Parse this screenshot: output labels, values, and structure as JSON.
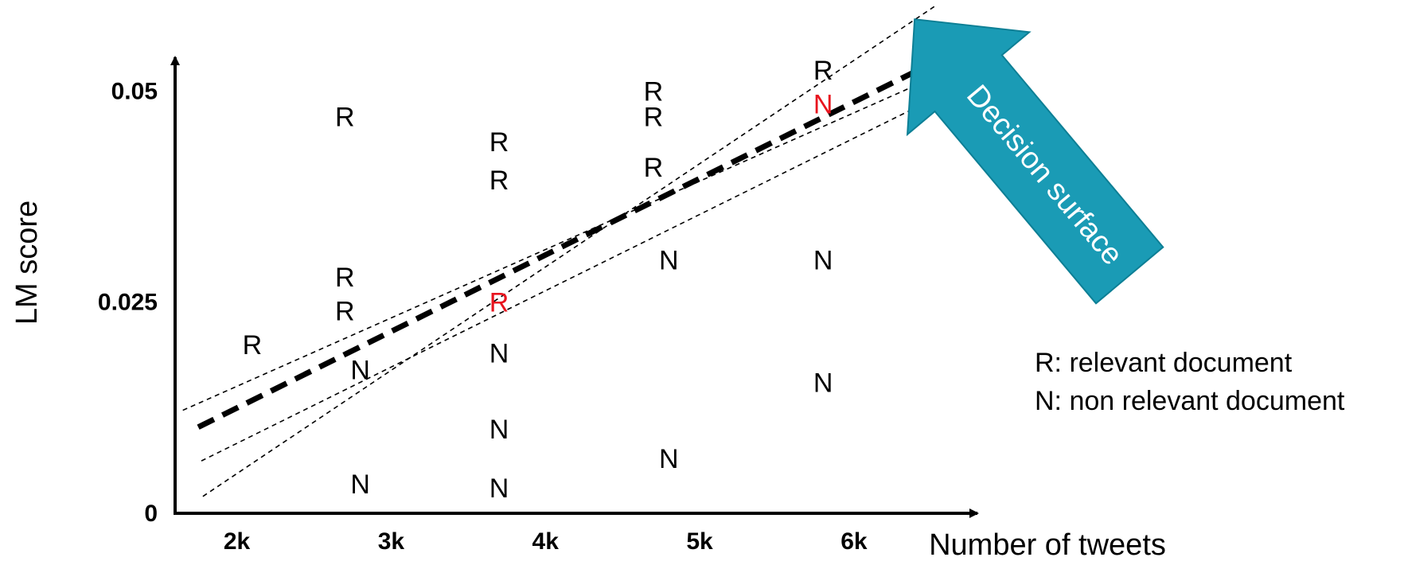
{
  "chart_data": {
    "type": "scatter",
    "xlabel": "Number of tweets",
    "ylabel": "LM score",
    "x_ticks": [
      {
        "value": 2000,
        "label": "2k"
      },
      {
        "value": 3000,
        "label": "3k"
      },
      {
        "value": 4000,
        "label": "4k"
      },
      {
        "value": 5000,
        "label": "5k"
      },
      {
        "value": 6000,
        "label": "6k"
      }
    ],
    "y_ticks": [
      {
        "value": 0,
        "label": "0"
      },
      {
        "value": 0.025,
        "label": "0.025"
      },
      {
        "value": 0.05,
        "label": "0.05"
      }
    ],
    "xlim": [
      1600,
      6800
    ],
    "ylim": [
      0,
      0.054
    ],
    "points": [
      {
        "x": 2100,
        "y": 0.02,
        "label": "R",
        "color": "#000000"
      },
      {
        "x": 2700,
        "y": 0.047,
        "label": "R",
        "color": "#000000"
      },
      {
        "x": 2700,
        "y": 0.028,
        "label": "R",
        "color": "#000000"
      },
      {
        "x": 2700,
        "y": 0.024,
        "label": "R",
        "color": "#000000"
      },
      {
        "x": 2800,
        "y": 0.017,
        "label": "N",
        "color": "#000000"
      },
      {
        "x": 2800,
        "y": 0.0035,
        "label": "N",
        "color": "#000000"
      },
      {
        "x": 3700,
        "y": 0.044,
        "label": "R",
        "color": "#000000"
      },
      {
        "x": 3700,
        "y": 0.0395,
        "label": "R",
        "color": "#000000"
      },
      {
        "x": 3700,
        "y": 0.025,
        "label": "R",
        "color": "#e8141e"
      },
      {
        "x": 3700,
        "y": 0.019,
        "label": "N",
        "color": "#000000"
      },
      {
        "x": 3700,
        "y": 0.01,
        "label": "N",
        "color": "#000000"
      },
      {
        "x": 3700,
        "y": 0.003,
        "label": "N",
        "color": "#000000"
      },
      {
        "x": 4700,
        "y": 0.05,
        "label": "R",
        "color": "#000000"
      },
      {
        "x": 4700,
        "y": 0.047,
        "label": "R",
        "color": "#000000"
      },
      {
        "x": 4700,
        "y": 0.041,
        "label": "R",
        "color": "#000000"
      },
      {
        "x": 4800,
        "y": 0.03,
        "label": "N",
        "color": "#000000"
      },
      {
        "x": 4800,
        "y": 0.0065,
        "label": "N",
        "color": "#000000"
      },
      {
        "x": 5800,
        "y": 0.0525,
        "label": "R",
        "color": "#000000"
      },
      {
        "x": 5800,
        "y": 0.0485,
        "label": "N",
        "color": "#e8141e"
      },
      {
        "x": 5800,
        "y": 0.03,
        "label": "N",
        "color": "#000000"
      },
      {
        "x": 5800,
        "y": 0.0155,
        "label": "N",
        "color": "#000000"
      }
    ],
    "lines": [
      {
        "style": "bold-dashed",
        "x": [
          1750,
          6750
        ],
        "y": [
          0.0102,
          0.0555
        ]
      },
      {
        "style": "thin-dashed",
        "x": [
          1650,
          6750
        ],
        "y": [
          0.0122,
          0.0535
        ]
      },
      {
        "style": "thin-dashed",
        "x": [
          1770,
          6750
        ],
        "y": [
          0.0062,
          0.0512
        ]
      },
      {
        "style": "thin-dashed",
        "x": [
          1780,
          6520
        ],
        "y": [
          0.002,
          0.06
        ]
      }
    ],
    "annotation": {
      "text": "Decision surface",
      "color": "#1a9bb5"
    },
    "legend": [
      "R: relevant document",
      "N: non relevant document"
    ]
  }
}
